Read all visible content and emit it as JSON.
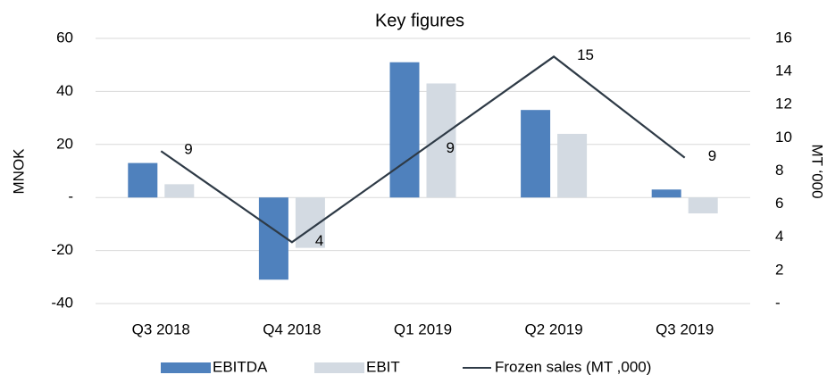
{
  "chart_data": {
    "type": "bar_line",
    "title": "Key figures",
    "categories": [
      "Q3 2018",
      "Q4 2018",
      "Q1 2019",
      "Q2 2019",
      "Q3 2019"
    ],
    "series": [
      {
        "name": "EBITDA",
        "color": "#4f81bd",
        "values": [
          13,
          -31,
          51,
          33,
          3
        ]
      },
      {
        "name": "EBIT",
        "color": "#d3dae2",
        "values": [
          5,
          -19,
          43,
          24,
          -6
        ]
      },
      {
        "name": "Frozen sales (MT ,000)",
        "color": "#2e3a46",
        "axis": "y2",
        "type": "line",
        "values": [
          9.2,
          3.7,
          9.3,
          14.9,
          8.8
        ],
        "value_labels": [
          "9",
          "4",
          "9",
          "15",
          "9"
        ]
      }
    ],
    "ylabel": "MNOK",
    "y2label": "MT ‘000",
    "ylim": [
      -40,
      60
    ],
    "yticks": [
      -40,
      -20,
      {
        "value": 0,
        "label": "-"
      },
      20,
      40,
      60
    ],
    "y2lim": [
      0,
      16
    ],
    "y2ticks": [
      {
        "value": 0,
        "label": "-"
      },
      2,
      4,
      6,
      8,
      10,
      12,
      14,
      16
    ],
    "grid": true,
    "legend": "bottom"
  }
}
